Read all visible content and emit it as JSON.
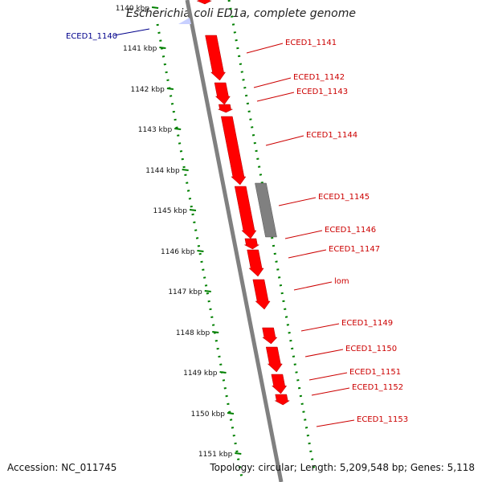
{
  "title": "Escherichia coli ED1a, complete genome",
  "accession": "Accession: NC_011745",
  "summary": "Topology: circular; Length: 5,209,548 bp; Genes: 5,118",
  "colors": {
    "gene": "#ff0000",
    "gene_other": "#808080",
    "scale_tick": "#008000",
    "highlight_label": "#00008b",
    "label": "#cc0000",
    "backbone": "#808080"
  },
  "scale_ticks": [
    "1140 kbp",
    "1141 kbp",
    "1142 kbp",
    "1143 kbp",
    "1144 kbp",
    "1145 kbp",
    "1146 kbp",
    "1147 kbp",
    "1148 kbp",
    "1149 kbp",
    "1150 kbp",
    "1151 kbp"
  ],
  "genes": [
    {
      "label": "ECED1_1140",
      "strand": "+",
      "highlight": true
    },
    {
      "label": "ECED1_1141",
      "strand": "+"
    },
    {
      "label": "ECED1_1142",
      "strand": "+"
    },
    {
      "label": "ECED1_1143",
      "strand": "+"
    },
    {
      "label": "ECED1_1144",
      "strand": "+"
    },
    {
      "label": "ECED1_1145",
      "strand": "-",
      "pseudo": true
    },
    {
      "label": "ECED1_1146",
      "strand": "+"
    },
    {
      "label": "ECED1_1147",
      "strand": "+"
    },
    {
      "label": "lom",
      "strand": "+"
    },
    {
      "label": "ECED1_1149",
      "strand": "+"
    },
    {
      "label": "ECED1_1150",
      "strand": "+"
    },
    {
      "label": "ECED1_1151",
      "strand": "+"
    },
    {
      "label": "ECED1_1152",
      "strand": "+"
    },
    {
      "label": "ECED1_1153",
      "strand": "+"
    }
  ]
}
